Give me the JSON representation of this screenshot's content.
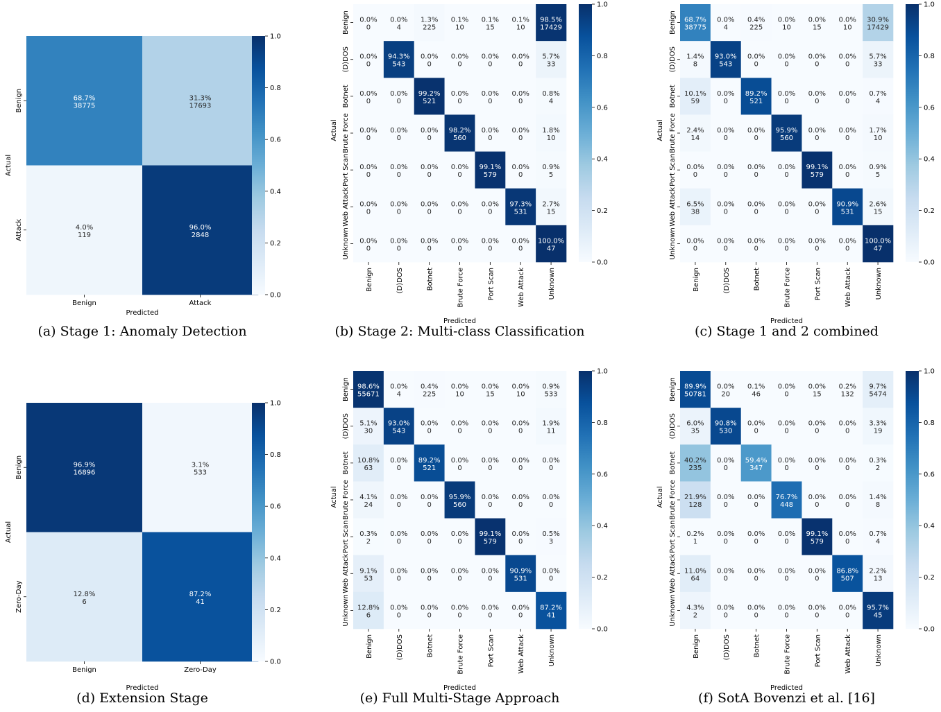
{
  "chart_data": [
    {
      "type": "heatmap",
      "caption": "(a) Stage 1: Anomaly Detection",
      "xlabel": "Predicted",
      "ylabel": "Actual",
      "rows": [
        "Benign",
        "Attack"
      ],
      "cols": [
        "Benign",
        "Attack"
      ],
      "values": [
        [
          0.687,
          0.313
        ],
        [
          0.04,
          0.96
        ]
      ],
      "labels": [
        [
          "68.7%",
          "31.3%"
        ],
        [
          "4.0%",
          "96.0%"
        ]
      ],
      "counts": [
        [
          "38775",
          "17693"
        ],
        [
          "119",
          "2848"
        ]
      ],
      "colorbar": {
        "range": [
          0,
          1
        ],
        "ticks": [
          "0.0",
          "0.2",
          "0.4",
          "0.6",
          "0.8",
          "1.0"
        ]
      }
    },
    {
      "type": "heatmap",
      "caption": "(b) Stage 2: Multi-class Classification",
      "xlabel": "Predicted",
      "ylabel": "Actual",
      "rows": [
        "Benign",
        "(D)DOS",
        "Botnet",
        "Brute Force",
        "Port Scan",
        "Web Attack",
        "Unknown"
      ],
      "cols": [
        "Benign",
        "(D)DOS",
        "Botnet",
        "Brute Force",
        "Port Scan",
        "Web Attack",
        "Unknown"
      ],
      "values": [
        [
          0.0,
          0.0,
          0.013,
          0.001,
          0.001,
          0.001,
          0.985
        ],
        [
          0.0,
          0.943,
          0.0,
          0.0,
          0.0,
          0.0,
          0.057
        ],
        [
          0.0,
          0.0,
          0.992,
          0.0,
          0.0,
          0.0,
          0.008
        ],
        [
          0.0,
          0.0,
          0.0,
          0.982,
          0.0,
          0.0,
          0.018
        ],
        [
          0.0,
          0.0,
          0.0,
          0.0,
          0.991,
          0.0,
          0.009
        ],
        [
          0.0,
          0.0,
          0.0,
          0.0,
          0.0,
          0.973,
          0.027
        ],
        [
          0.0,
          0.0,
          0.0,
          0.0,
          0.0,
          0.0,
          1.0
        ]
      ],
      "labels": [
        [
          "0.0%",
          "0.0%",
          "1.3%",
          "0.1%",
          "0.1%",
          "0.1%",
          "98.5%"
        ],
        [
          "0.0%",
          "94.3%",
          "0.0%",
          "0.0%",
          "0.0%",
          "0.0%",
          "5.7%"
        ],
        [
          "0.0%",
          "0.0%",
          "99.2%",
          "0.0%",
          "0.0%",
          "0.0%",
          "0.8%"
        ],
        [
          "0.0%",
          "0.0%",
          "0.0%",
          "98.2%",
          "0.0%",
          "0.0%",
          "1.8%"
        ],
        [
          "0.0%",
          "0.0%",
          "0.0%",
          "0.0%",
          "99.1%",
          "0.0%",
          "0.9%"
        ],
        [
          "0.0%",
          "0.0%",
          "0.0%",
          "0.0%",
          "0.0%",
          "97.3%",
          "2.7%"
        ],
        [
          "0.0%",
          "0.0%",
          "0.0%",
          "0.0%",
          "0.0%",
          "0.0%",
          "100.0%"
        ]
      ],
      "counts": [
        [
          "0",
          "4",
          "225",
          "10",
          "15",
          "10",
          "17429"
        ],
        [
          "0",
          "543",
          "0",
          "0",
          "0",
          "0",
          "33"
        ],
        [
          "0",
          "0",
          "521",
          "0",
          "0",
          "0",
          "4"
        ],
        [
          "0",
          "0",
          "0",
          "560",
          "0",
          "0",
          "10"
        ],
        [
          "0",
          "0",
          "0",
          "0",
          "579",
          "0",
          "5"
        ],
        [
          "0",
          "0",
          "0",
          "0",
          "0",
          "531",
          "15"
        ],
        [
          "0",
          "0",
          "0",
          "0",
          "0",
          "0",
          "47"
        ]
      ],
      "colorbar": {
        "range": [
          0,
          1
        ],
        "ticks": [
          "0.0",
          "0.2",
          "0.4",
          "0.6",
          "0.8",
          "1.0"
        ]
      }
    },
    {
      "type": "heatmap",
      "caption": "(c) Stage 1 and 2 combined",
      "xlabel": "Predicted",
      "ylabel": "Actual",
      "rows": [
        "Benign",
        "(D)DOS",
        "Botnet",
        "Brute Force",
        "Port Scan",
        "Web Attack",
        "Unknown"
      ],
      "cols": [
        "Benign",
        "(D)DOS",
        "Botnet",
        "Brute Force",
        "Port Scan",
        "Web Attack",
        "Unknown"
      ],
      "values": [
        [
          0.687,
          0.0,
          0.004,
          0.0,
          0.0,
          0.0,
          0.309
        ],
        [
          0.014,
          0.93,
          0.0,
          0.0,
          0.0,
          0.0,
          0.057
        ],
        [
          0.101,
          0.0,
          0.892,
          0.0,
          0.0,
          0.0,
          0.007
        ],
        [
          0.024,
          0.0,
          0.0,
          0.959,
          0.0,
          0.0,
          0.017
        ],
        [
          0.0,
          0.0,
          0.0,
          0.0,
          0.991,
          0.0,
          0.009
        ],
        [
          0.065,
          0.0,
          0.0,
          0.0,
          0.0,
          0.909,
          0.026
        ],
        [
          0.0,
          0.0,
          0.0,
          0.0,
          0.0,
          0.0,
          1.0
        ]
      ],
      "labels": [
        [
          "68.7%",
          "0.0%",
          "0.4%",
          "0.0%",
          "0.0%",
          "0.0%",
          "30.9%"
        ],
        [
          "1.4%",
          "93.0%",
          "0.0%",
          "0.0%",
          "0.0%",
          "0.0%",
          "5.7%"
        ],
        [
          "10.1%",
          "0.0%",
          "89.2%",
          "0.0%",
          "0.0%",
          "0.0%",
          "0.7%"
        ],
        [
          "2.4%",
          "0.0%",
          "0.0%",
          "95.9%",
          "0.0%",
          "0.0%",
          "1.7%"
        ],
        [
          "0.0%",
          "0.0%",
          "0.0%",
          "0.0%",
          "99.1%",
          "0.0%",
          "0.9%"
        ],
        [
          "6.5%",
          "0.0%",
          "0.0%",
          "0.0%",
          "0.0%",
          "90.9%",
          "2.6%"
        ],
        [
          "0.0%",
          "0.0%",
          "0.0%",
          "0.0%",
          "0.0%",
          "0.0%",
          "100.0%"
        ]
      ],
      "counts": [
        [
          "38775",
          "4",
          "225",
          "10",
          "15",
          "10",
          "17429"
        ],
        [
          "8",
          "543",
          "0",
          "0",
          "0",
          "0",
          "33"
        ],
        [
          "59",
          "0",
          "521",
          "0",
          "0",
          "0",
          "4"
        ],
        [
          "14",
          "0",
          "0",
          "560",
          "0",
          "0",
          "10"
        ],
        [
          "0",
          "0",
          "0",
          "0",
          "579",
          "0",
          "5"
        ],
        [
          "38",
          "0",
          "0",
          "0",
          "0",
          "531",
          "15"
        ],
        [
          "0",
          "0",
          "0",
          "0",
          "0",
          "0",
          "47"
        ]
      ],
      "colorbar": {
        "range": [
          0,
          1
        ],
        "ticks": [
          "0.0",
          "0.2",
          "0.4",
          "0.6",
          "0.8",
          "1.0"
        ]
      }
    },
    {
      "type": "heatmap",
      "caption": "(d) Extension Stage",
      "xlabel": "Predicted",
      "ylabel": "Actual",
      "rows": [
        "Benign",
        "Zero-Day"
      ],
      "cols": [
        "Benign",
        "Zero-Day"
      ],
      "values": [
        [
          0.969,
          0.031
        ],
        [
          0.128,
          0.872
        ]
      ],
      "labels": [
        [
          "96.9%",
          "3.1%"
        ],
        [
          "12.8%",
          "87.2%"
        ]
      ],
      "counts": [
        [
          "16896",
          "533"
        ],
        [
          "6",
          "41"
        ]
      ],
      "colorbar": {
        "range": [
          0,
          1
        ],
        "ticks": [
          "0.0",
          "0.2",
          "0.4",
          "0.6",
          "0.8",
          "1.0"
        ]
      }
    },
    {
      "type": "heatmap",
      "caption": "(e) Full Multi-Stage Approach",
      "xlabel": "Predicted",
      "ylabel": "Actual",
      "rows": [
        "Benign",
        "(D)DOS",
        "Botnet",
        "Brute Force",
        "Port Scan",
        "Web Attack",
        "Unknown"
      ],
      "cols": [
        "Benign",
        "(D)DOS",
        "Botnet",
        "Brute Force",
        "Port Scan",
        "Web Attack",
        "Unknown"
      ],
      "values": [
        [
          0.986,
          0.0,
          0.004,
          0.0,
          0.0,
          0.0,
          0.009
        ],
        [
          0.051,
          0.93,
          0.0,
          0.0,
          0.0,
          0.0,
          0.019
        ],
        [
          0.108,
          0.0,
          0.892,
          0.0,
          0.0,
          0.0,
          0.0
        ],
        [
          0.041,
          0.0,
          0.0,
          0.959,
          0.0,
          0.0,
          0.0
        ],
        [
          0.003,
          0.0,
          0.0,
          0.0,
          0.991,
          0.0,
          0.005
        ],
        [
          0.091,
          0.0,
          0.0,
          0.0,
          0.0,
          0.909,
          0.0
        ],
        [
          0.128,
          0.0,
          0.0,
          0.0,
          0.0,
          0.0,
          0.872
        ]
      ],
      "labels": [
        [
          "98.6%",
          "0.0%",
          "0.4%",
          "0.0%",
          "0.0%",
          "0.0%",
          "0.9%"
        ],
        [
          "5.1%",
          "93.0%",
          "0.0%",
          "0.0%",
          "0.0%",
          "0.0%",
          "1.9%"
        ],
        [
          "10.8%",
          "0.0%",
          "89.2%",
          "0.0%",
          "0.0%",
          "0.0%",
          "0.0%"
        ],
        [
          "4.1%",
          "0.0%",
          "0.0%",
          "95.9%",
          "0.0%",
          "0.0%",
          "0.0%"
        ],
        [
          "0.3%",
          "0.0%",
          "0.0%",
          "0.0%",
          "99.1%",
          "0.0%",
          "0.5%"
        ],
        [
          "9.1%",
          "0.0%",
          "0.0%",
          "0.0%",
          "0.0%",
          "90.9%",
          "0.0%"
        ],
        [
          "12.8%",
          "0.0%",
          "0.0%",
          "0.0%",
          "0.0%",
          "0.0%",
          "87.2%"
        ]
      ],
      "counts": [
        [
          "55671",
          "4",
          "225",
          "10",
          "15",
          "10",
          "533"
        ],
        [
          "30",
          "543",
          "0",
          "0",
          "0",
          "0",
          "11"
        ],
        [
          "63",
          "0",
          "521",
          "0",
          "0",
          "0",
          "0"
        ],
        [
          "24",
          "0",
          "0",
          "560",
          "0",
          "0",
          "0"
        ],
        [
          "2",
          "0",
          "0",
          "0",
          "579",
          "0",
          "3"
        ],
        [
          "53",
          "0",
          "0",
          "0",
          "0",
          "531",
          "0"
        ],
        [
          "6",
          "0",
          "0",
          "0",
          "0",
          "0",
          "41"
        ]
      ],
      "colorbar": {
        "range": [
          0,
          1
        ],
        "ticks": [
          "0.0",
          "0.2",
          "0.4",
          "0.6",
          "0.8",
          "1.0"
        ]
      }
    },
    {
      "type": "heatmap",
      "caption": "(f) SotA Bovenzi et al. [16]",
      "xlabel": "Predicted",
      "ylabel": "Actual",
      "rows": [
        "Benign",
        "(D)DOS",
        "Botnet",
        "Brute Force",
        "Port Scan",
        "Web Attack",
        "Unknown"
      ],
      "cols": [
        "Benign",
        "(D)DOS",
        "Botnet",
        "Brute Force",
        "Port Scan",
        "Web Attack",
        "Unknown"
      ],
      "values": [
        [
          0.899,
          0.0,
          0.001,
          0.0,
          0.0,
          0.002,
          0.097
        ],
        [
          0.06,
          0.908,
          0.0,
          0.0,
          0.0,
          0.0,
          0.033
        ],
        [
          0.402,
          0.0,
          0.594,
          0.0,
          0.0,
          0.0,
          0.003
        ],
        [
          0.219,
          0.0,
          0.0,
          0.767,
          0.0,
          0.0,
          0.014
        ],
        [
          0.002,
          0.0,
          0.0,
          0.0,
          0.991,
          0.0,
          0.007
        ],
        [
          0.11,
          0.0,
          0.0,
          0.0,
          0.0,
          0.868,
          0.022
        ],
        [
          0.043,
          0.0,
          0.0,
          0.0,
          0.0,
          0.0,
          0.957
        ]
      ],
      "labels": [
        [
          "89.9%",
          "0.0%",
          "0.1%",
          "0.0%",
          "0.0%",
          "0.2%",
          "9.7%"
        ],
        [
          "6.0%",
          "90.8%",
          "0.0%",
          "0.0%",
          "0.0%",
          "0.0%",
          "3.3%"
        ],
        [
          "40.2%",
          "0.0%",
          "59.4%",
          "0.0%",
          "0.0%",
          "0.0%",
          "0.3%"
        ],
        [
          "21.9%",
          "0.0%",
          "0.0%",
          "76.7%",
          "0.0%",
          "0.0%",
          "1.4%"
        ],
        [
          "0.2%",
          "0.0%",
          "0.0%",
          "0.0%",
          "99.1%",
          "0.0%",
          "0.7%"
        ],
        [
          "11.0%",
          "0.0%",
          "0.0%",
          "0.0%",
          "0.0%",
          "86.8%",
          "2.2%"
        ],
        [
          "4.3%",
          "0.0%",
          "0.0%",
          "0.0%",
          "0.0%",
          "0.0%",
          "95.7%"
        ]
      ],
      "counts": [
        [
          "50781",
          "20",
          "46",
          "0",
          "15",
          "132",
          "5474"
        ],
        [
          "35",
          "530",
          "0",
          "0",
          "0",
          "0",
          "19"
        ],
        [
          "235",
          "0",
          "347",
          "0",
          "0",
          "0",
          "2"
        ],
        [
          "128",
          "0",
          "0",
          "448",
          "0",
          "0",
          "8"
        ],
        [
          "1",
          "0",
          "0",
          "0",
          "579",
          "0",
          "4"
        ],
        [
          "64",
          "0",
          "0",
          "0",
          "0",
          "507",
          "13"
        ],
        [
          "2",
          "0",
          "0",
          "0",
          "0",
          "0",
          "45"
        ]
      ],
      "colorbar": {
        "range": [
          0,
          1
        ],
        "ticks": [
          "0.0",
          "0.2",
          "0.4",
          "0.6",
          "0.8",
          "1.0"
        ]
      }
    }
  ]
}
